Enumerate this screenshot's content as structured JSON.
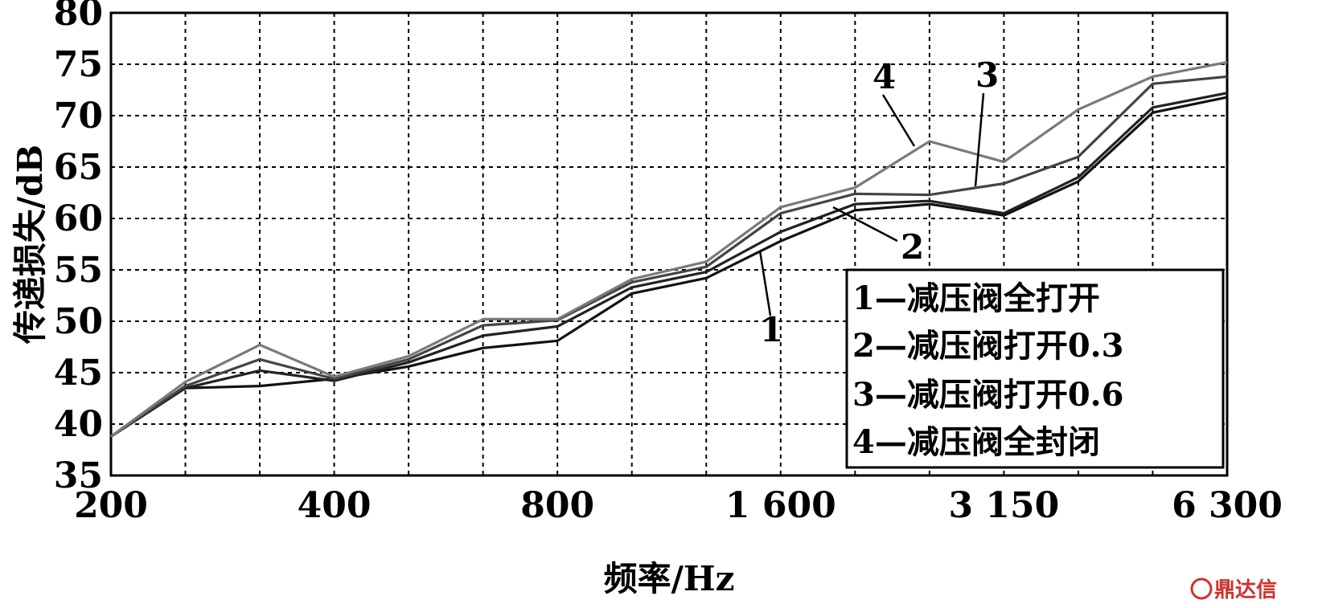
{
  "chart_data": {
    "type": "line",
    "xlabel": "频率/Hz",
    "ylabel": "传递损失/dB",
    "ylim": [
      35,
      80
    ],
    "yticks": [
      35,
      40,
      45,
      50,
      55,
      60,
      65,
      70,
      75,
      80
    ],
    "x_scale": "log (1/3 octave bands)",
    "x": [
      200,
      250,
      315,
      400,
      500,
      630,
      800,
      1000,
      1250,
      1600,
      2000,
      2500,
      3150,
      4000,
      5000,
      6300
    ],
    "xtick_labels": [
      "200",
      "400",
      "800",
      "1 600",
      "3 150",
      "6 300"
    ],
    "grid": true,
    "series": [
      {
        "name": "1",
        "color": "#111111",
        "values": [
          38.8,
          43.5,
          43.7,
          44.4,
          45.6,
          47.4,
          48.1,
          52.7,
          54.2,
          57.8,
          60.8,
          61.4,
          60.3,
          63.6,
          70.3,
          71.8
        ]
      },
      {
        "name": "2",
        "color": "#222222",
        "values": [
          38.8,
          43.5,
          45.2,
          44.2,
          46.0,
          48.6,
          49.5,
          53.3,
          54.8,
          58.7,
          61.4,
          61.7,
          60.5,
          64.0,
          70.8,
          72.2
        ]
      },
      {
        "name": "3",
        "color": "#444444",
        "values": [
          38.8,
          43.7,
          46.3,
          44.4,
          46.3,
          49.6,
          50.1,
          53.8,
          55.3,
          60.5,
          62.4,
          62.3,
          63.4,
          66.0,
          73.1,
          73.8
        ]
      },
      {
        "name": "4",
        "color": "#7a7a7a",
        "values": [
          38.8,
          44.1,
          47.7,
          44.6,
          46.6,
          50.2,
          50.2,
          54.1,
          55.8,
          61.1,
          63.0,
          67.5,
          65.5,
          70.6,
          73.8,
          75.2
        ]
      }
    ],
    "annotations": [
      "1",
      "2",
      "3",
      "4"
    ],
    "legend": {
      "position": "bottom-right",
      "entries": [
        "1—减压阀全打开",
        "2—减压阀打开0.3",
        "3—减压阀打开0.6",
        "4—减压阀全封闭"
      ]
    }
  },
  "watermark": "鼎达信"
}
